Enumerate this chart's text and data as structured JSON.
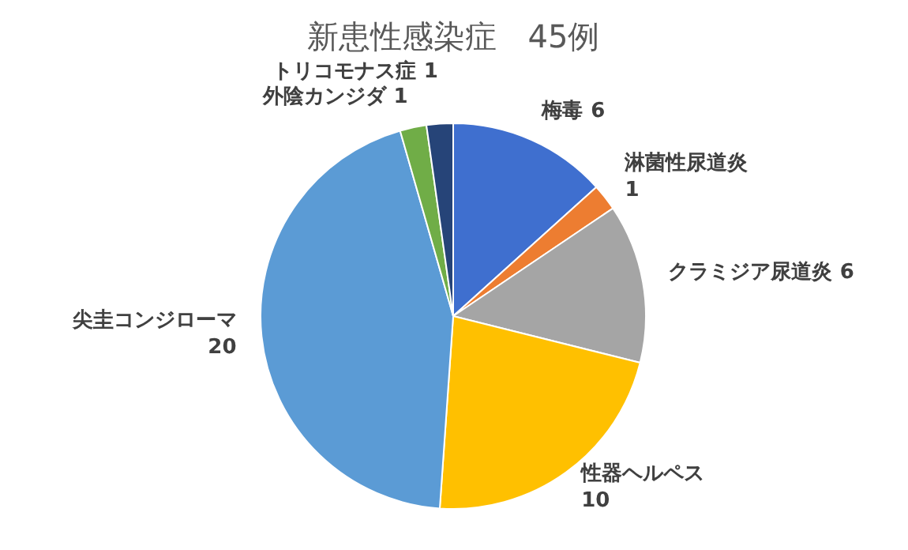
{
  "chart_data": {
    "type": "pie",
    "title": "新患性感染症　45例",
    "categories": [
      "梅毒",
      "淋菌性尿道炎",
      "クラミジア尿道炎",
      "性器ヘルペス",
      "尖圭コンジローマ",
      "外陰カンジダ",
      "トリコモナス症"
    ],
    "values": [
      6,
      1,
      6,
      10,
      20,
      1,
      1
    ],
    "colors": [
      "#3f6fcf",
      "#ed7d31",
      "#a5a5a5",
      "#ffc000",
      "#5b9bd5",
      "#70ad47",
      "#264478"
    ],
    "data_labels": true
  }
}
